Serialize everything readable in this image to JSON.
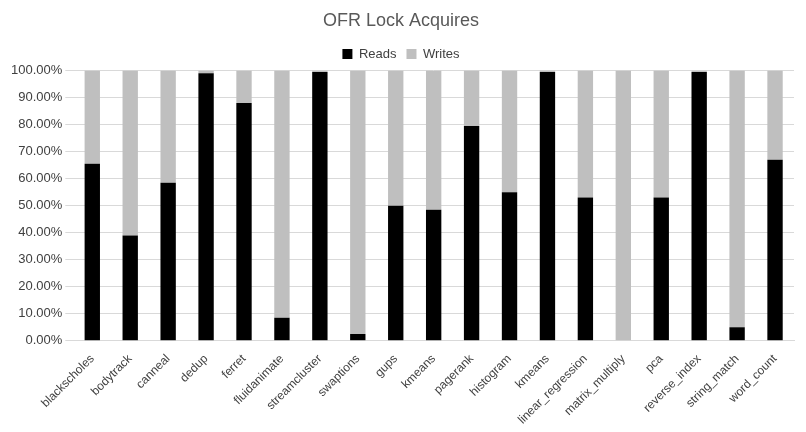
{
  "chart_data": {
    "type": "bar",
    "title": "OFR Lock Acquires",
    "categories": [
      "blackscholes",
      "bodytrack",
      "canneal",
      "dedup",
      "ferret",
      "fluidanimate",
      "streamcluster",
      "swaptions",
      "gups",
      "kmeans",
      "pagerank",
      "histogram",
      "kmeans",
      "linear_regression",
      "matrix_multiply",
      "pca",
      "reverse_index",
      "string_match",
      "word_count"
    ],
    "series": [
      {
        "name": "Reads",
        "color": "#000000",
        "values": [
          65.5,
          39,
          58.5,
          99,
          88,
          8.5,
          99.5,
          2.5,
          50,
          48.5,
          79.5,
          55,
          99.5,
          53,
          0,
          53,
          99.5,
          5,
          67
        ]
      },
      {
        "name": "Writes",
        "color": "#bfbfbf",
        "values": [
          34.5,
          61,
          41.5,
          1,
          12,
          91.5,
          0.5,
          97.5,
          50,
          51.5,
          20.5,
          45,
          0.5,
          47,
          100,
          47,
          0.5,
          95,
          33
        ]
      }
    ],
    "stacked": true,
    "ylim": [
      0,
      100
    ],
    "yticks": [
      {
        "value": 0,
        "label": "0.00%"
      },
      {
        "value": 10,
        "label": "10.00%"
      },
      {
        "value": 20,
        "label": "20.00%"
      },
      {
        "value": 30,
        "label": "30.00%"
      },
      {
        "value": 40,
        "label": "40.00%"
      },
      {
        "value": 50,
        "label": "50.00%"
      },
      {
        "value": 60,
        "label": "60.00%"
      },
      {
        "value": 70,
        "label": "70.00%"
      },
      {
        "value": 80,
        "label": "80.00%"
      },
      {
        "value": 90,
        "label": "90.00%"
      },
      {
        "value": 100,
        "label": "100.00%"
      }
    ],
    "grid": true,
    "legend": "top"
  }
}
